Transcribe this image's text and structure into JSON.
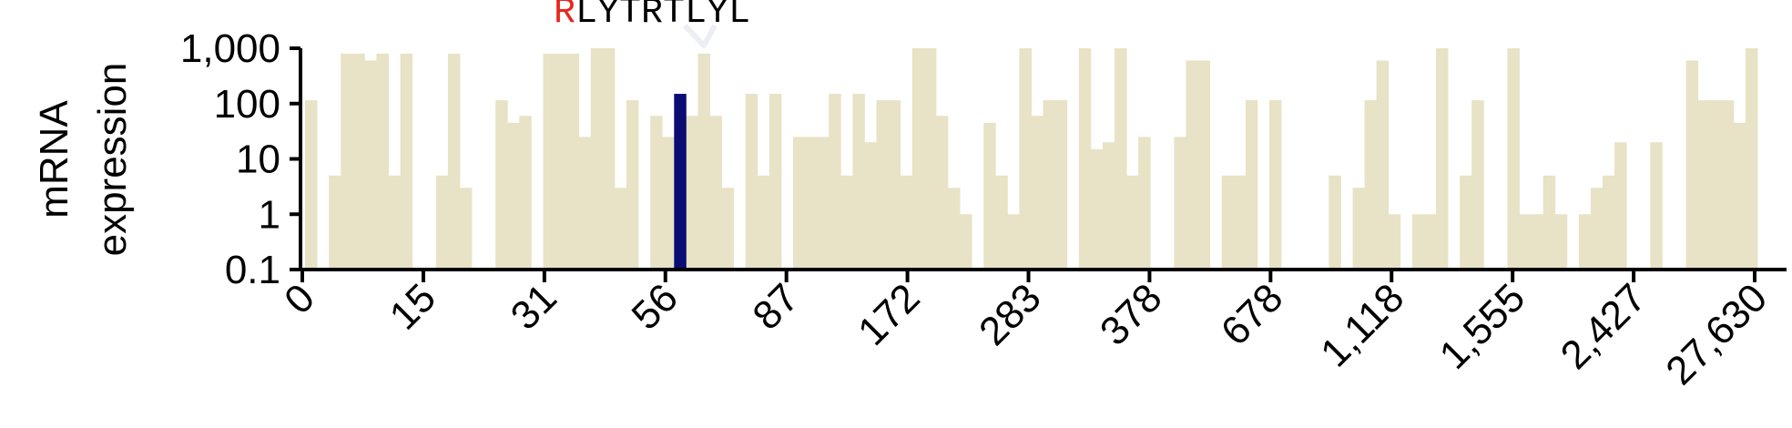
{
  "chart_data": {
    "type": "bar",
    "scale": "log",
    "ylabel_lines": [
      "mRNA",
      "expression"
    ],
    "ylim": [
      0.1,
      1000
    ],
    "y_ticks": [
      0.1,
      1,
      10,
      100,
      1000
    ],
    "y_tick_labels": [
      "0.1",
      "1",
      "10",
      "100",
      "1,000"
    ],
    "x_tick_labels": [
      "0",
      "15",
      "31",
      "56",
      "87",
      "172",
      "283",
      "378",
      "678",
      "1,118",
      "1,555",
      "2,427",
      "27,630"
    ],
    "annotation": {
      "first": "R",
      "rest": "LYTRTLYL",
      "first_color": "#e8251f",
      "rest_color": "#000000"
    },
    "colors": {
      "bar": "#e8e2c6",
      "highlight": "#0b0d73"
    },
    "highlight_index": 31,
    "values": [
      115,
      0.1,
      5,
      800,
      800,
      600,
      800,
      5,
      800,
      0.1,
      0.1,
      5,
      800,
      3,
      0.1,
      0.1,
      115,
      45,
      60,
      0.1,
      800,
      800,
      800,
      25,
      1000,
      1000,
      3,
      115,
      0.1,
      60,
      25,
      150,
      60,
      800,
      60,
      3,
      0.1,
      150,
      5,
      150,
      0.1,
      25,
      25,
      25,
      150,
      5,
      150,
      20,
      115,
      115,
      5,
      1000,
      1000,
      60,
      3,
      1,
      0.1,
      45,
      5,
      1,
      1000,
      60,
      115,
      115,
      0.1,
      1000,
      15,
      20,
      1000,
      5,
      25,
      0.1,
      0.1,
      25,
      600,
      600,
      0.1,
      5,
      5,
      115,
      0.1,
      115,
      0.1,
      0.1,
      0.1,
      0.1,
      5,
      0.1,
      3,
      115,
      600,
      1,
      0.1,
      1,
      1,
      1000,
      0.1,
      5,
      115,
      0.1,
      0.1,
      1000,
      1,
      1,
      5,
      1,
      0.1,
      1,
      3,
      5,
      20,
      0.1,
      0.1,
      20,
      0.1,
      0.1,
      600,
      115,
      115,
      115,
      45,
      1000
    ]
  }
}
